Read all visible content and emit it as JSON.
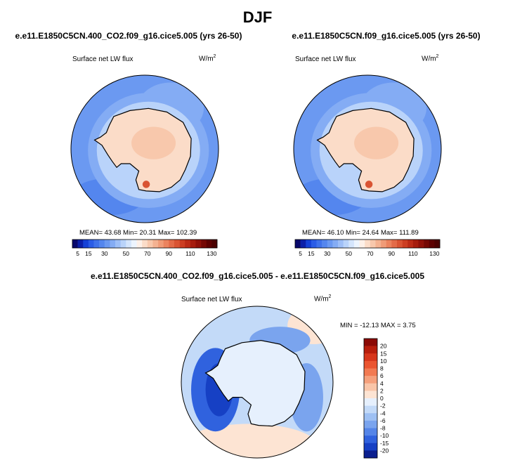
{
  "season_title": "DJF",
  "panels": [
    {
      "case_title": "e.e11.E1850C5CN.400_CO2.f09_g16.cice5.005 (yrs 26-50)",
      "field_label": "Surface net LW flux",
      "units_base": "W/m",
      "units_exp": "2",
      "stats_text": "MEAN=  43.68  Min=  20.31  Max= 102.39"
    },
    {
      "case_title": "e.e11.E1850C5CN.f09_g16.cice5.005 (yrs 26-50)",
      "field_label": "Surface net LW flux",
      "units_base": "W/m",
      "units_exp": "2",
      "stats_text": "MEAN=  46.10  Min=  24.64  Max= 111.89"
    }
  ],
  "diff_panel": {
    "case_title": "e.e11.E1850C5CN.400_CO2.f09_g16.cice5.005 - e.e11.E1850C5CN.f09_g16.cice5.005",
    "field_label": "Surface net LW flux",
    "units_base": "W/m",
    "units_exp": "2",
    "stats_text": "MIN = -12.13 MAX =   3.75"
  },
  "chart_data": [
    {
      "type": "heatmap",
      "projection": "south-polar-stereographic",
      "title": "e.e11.E1850C5CN.400_CO2.f09_g16.cice5.005 (yrs 26-50)",
      "variable": "Surface net LW flux",
      "units": "W/m2",
      "mean": 43.68,
      "min": 20.31,
      "max": 102.39,
      "colorbar_ticks": [
        "5",
        "15",
        "30",
        "50",
        "70",
        "90",
        "110",
        "130"
      ],
      "colorbar_levels": [
        5,
        10,
        15,
        20,
        25,
        30,
        35,
        40,
        45,
        50,
        55,
        60,
        65,
        70,
        75,
        80,
        85,
        90,
        95,
        100,
        105,
        110,
        115,
        120,
        125,
        130
      ],
      "colorbar_colors": [
        "#08086b",
        "#0b1fa8",
        "#1541d6",
        "#2a5ce6",
        "#3f72ea",
        "#5486ee",
        "#6b99f1",
        "#84acf4",
        "#9ebff7",
        "#b9d3fa",
        "#d4e5fc",
        "#ecf4fe",
        "#fdf0e8",
        "#fbdcc8",
        "#f8c8ac",
        "#f4b291",
        "#f09b77",
        "#eb835e",
        "#e36b48",
        "#d95433",
        "#cc3e22",
        "#bb2b16",
        "#a61c0d",
        "#8f1008",
        "#750703",
        "#5c0000",
        "#4a0000"
      ]
    },
    {
      "type": "heatmap",
      "projection": "south-polar-stereographic",
      "title": "e.e11.E1850C5CN.f09_g16.cice5.005 (yrs 26-50)",
      "variable": "Surface net LW flux",
      "units": "W/m2",
      "mean": 46.1,
      "min": 24.64,
      "max": 111.89,
      "colorbar_ticks": [
        "5",
        "15",
        "30",
        "50",
        "70",
        "90",
        "110",
        "130"
      ],
      "colorbar_levels": [
        5,
        10,
        15,
        20,
        25,
        30,
        35,
        40,
        45,
        50,
        55,
        60,
        65,
        70,
        75,
        80,
        85,
        90,
        95,
        100,
        105,
        110,
        115,
        120,
        125,
        130
      ],
      "colorbar_colors": [
        "#08086b",
        "#0b1fa8",
        "#1541d6",
        "#2a5ce6",
        "#3f72ea",
        "#5486ee",
        "#6b99f1",
        "#84acf4",
        "#9ebff7",
        "#b9d3fa",
        "#d4e5fc",
        "#ecf4fe",
        "#fdf0e8",
        "#fbdcc8",
        "#f8c8ac",
        "#f4b291",
        "#f09b77",
        "#eb835e",
        "#e36b48",
        "#d95433",
        "#cc3e22",
        "#bb2b16",
        "#a61c0d",
        "#8f1008",
        "#750703",
        "#5c0000",
        "#4a0000"
      ]
    },
    {
      "type": "heatmap",
      "projection": "south-polar-stereographic",
      "title": "e.e11.E1850C5CN.400_CO2.f09_g16.cice5.005 - e.e11.E1850C5CN.f09_g16.cice5.005",
      "variable": "Surface net LW flux",
      "units": "W/m2",
      "min": -12.13,
      "max": 3.75,
      "colorbar_levels": [
        "20",
        "15",
        "10",
        "8",
        "6",
        "4",
        "2",
        "0",
        "-2",
        "-4",
        "-6",
        "-8",
        "-10",
        "-15",
        "-20"
      ],
      "colorbar_colors": [
        "#8b0a05",
        "#b81e0c",
        "#d7361b",
        "#eb5530",
        "#f27a52",
        "#f5a07c",
        "#f9c5a8",
        "#fde4d3",
        "#e6f0fd",
        "#c3daf8",
        "#9ec0f3",
        "#7aa4ee",
        "#5585e8",
        "#3062de",
        "#1640c4",
        "#0b1f8e"
      ]
    }
  ]
}
